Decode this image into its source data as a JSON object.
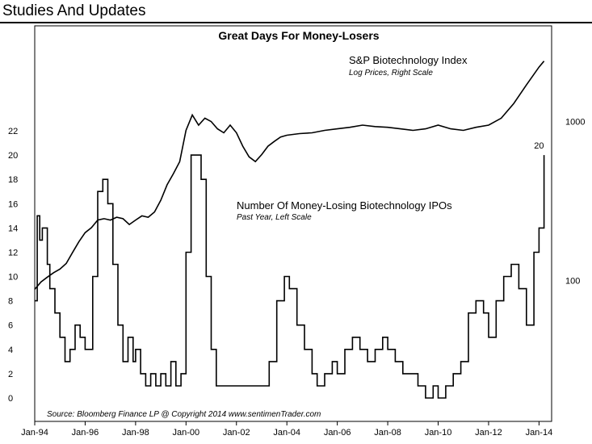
{
  "header": {
    "title": "Studies And Updates"
  },
  "chart_data": {
    "type": "line",
    "title": "Great Days For Money-Losers",
    "source": "Source:  Bloomberg Finance LP   @ Copyright 2014   www.sentimenTrader.com",
    "x_ticks": [
      "Jan-94",
      "Jan-96",
      "Jan-98",
      "Jan-00",
      "Jan-02",
      "Jan-04",
      "Jan-06",
      "Jan-08",
      "Jan-10",
      "Jan-12",
      "Jan-14"
    ],
    "xlim": [
      1994.0,
      2014.5
    ],
    "left_axis": {
      "ticks": [
        0,
        2,
        4,
        6,
        8,
        10,
        12,
        14,
        16,
        18,
        20,
        22
      ],
      "ylim": [
        0,
        26
      ]
    },
    "right_axis": {
      "scale": "log",
      "ticks": [
        100,
        1000
      ],
      "ylim": [
        13,
        4000
      ]
    },
    "annotation": {
      "text": "20",
      "x": 2014.0,
      "y": 20
    },
    "series": [
      {
        "name": "S&P Biotechnology Index",
        "subtitle": "Log Prices, Right Scale",
        "axis": "right",
        "x": [
          1994.0,
          1994.25,
          1994.5,
          1994.75,
          1995.0,
          1995.25,
          1995.5,
          1995.75,
          1996.0,
          1996.25,
          1996.5,
          1996.75,
          1997.0,
          1997.25,
          1997.5,
          1997.75,
          1998.0,
          1998.25,
          1998.5,
          1998.75,
          1999.0,
          1999.25,
          1999.5,
          1999.75,
          2000.0,
          2000.25,
          2000.5,
          2000.75,
          2001.0,
          2001.25,
          2001.5,
          2001.75,
          2002.0,
          2002.25,
          2002.5,
          2002.75,
          2003.0,
          2003.25,
          2003.5,
          2003.75,
          2004.0,
          2004.5,
          2005.0,
          2005.5,
          2006.0,
          2006.5,
          2007.0,
          2007.5,
          2008.0,
          2008.5,
          2009.0,
          2009.5,
          2010.0,
          2010.5,
          2011.0,
          2011.5,
          2012.0,
          2012.5,
          2013.0,
          2013.5,
          2014.0,
          2014.2
        ],
        "values": [
          88,
          98,
          105,
          112,
          118,
          128,
          150,
          175,
          200,
          215,
          240,
          245,
          240,
          250,
          245,
          225,
          240,
          255,
          250,
          270,
          320,
          400,
          470,
          560,
          880,
          1100,
          950,
          1050,
          1000,
          900,
          850,
          950,
          850,
          700,
          600,
          560,
          620,
          700,
          750,
          800,
          820,
          840,
          850,
          880,
          900,
          920,
          950,
          930,
          920,
          900,
          880,
          900,
          950,
          900,
          880,
          920,
          950,
          1050,
          1300,
          1700,
          2200,
          2400
        ]
      },
      {
        "name": "Number Of Money-Losing Biotechnology IPOs",
        "subtitle": "Past Year, Left Scale",
        "axis": "left",
        "x": [
          1994.0,
          1994.1,
          1994.2,
          1994.3,
          1994.5,
          1994.6,
          1994.8,
          1995.0,
          1995.2,
          1995.4,
          1995.6,
          1995.8,
          1996.0,
          1996.3,
          1996.5,
          1996.7,
          1996.9,
          1997.1,
          1997.3,
          1997.5,
          1997.7,
          1997.9,
          1998.0,
          1998.2,
          1998.4,
          1998.6,
          1998.8,
          1999.0,
          1999.2,
          1999.4,
          1999.6,
          1999.8,
          2000.0,
          2000.2,
          2000.4,
          2000.6,
          2000.8,
          2001.0,
          2001.2,
          2001.5,
          2001.8,
          2002.0,
          2002.5,
          2003.0,
          2003.3,
          2003.6,
          2003.9,
          2004.1,
          2004.4,
          2004.7,
          2005.0,
          2005.2,
          2005.5,
          2005.8,
          2006.0,
          2006.3,
          2006.6,
          2006.9,
          2007.2,
          2007.5,
          2007.8,
          2008.0,
          2008.3,
          2008.6,
          2008.9,
          2009.2,
          2009.5,
          2009.8,
          2010.0,
          2010.3,
          2010.6,
          2010.9,
          2011.2,
          2011.5,
          2011.8,
          2012.0,
          2012.3,
          2012.6,
          2012.9,
          2013.2,
          2013.5,
          2013.8,
          2014.0,
          2014.2
        ],
        "values": [
          8,
          15,
          13,
          14,
          11,
          9,
          7,
          5,
          3,
          4,
          6,
          5,
          4,
          10,
          17,
          18,
          16,
          11,
          6,
          3,
          5,
          3,
          4,
          2,
          1,
          2,
          1,
          2,
          1,
          3,
          1,
          2,
          12,
          20,
          20,
          18,
          10,
          4,
          1,
          1,
          1,
          1,
          1,
          1,
          3,
          8,
          10,
          9,
          6,
          4,
          2,
          1,
          2,
          3,
          2,
          4,
          5,
          4,
          3,
          4,
          5,
          4,
          3,
          2,
          2,
          1,
          0,
          1,
          0,
          1,
          2,
          3,
          7,
          8,
          7,
          5,
          8,
          10,
          11,
          9,
          6,
          12,
          14,
          20
        ]
      }
    ]
  }
}
